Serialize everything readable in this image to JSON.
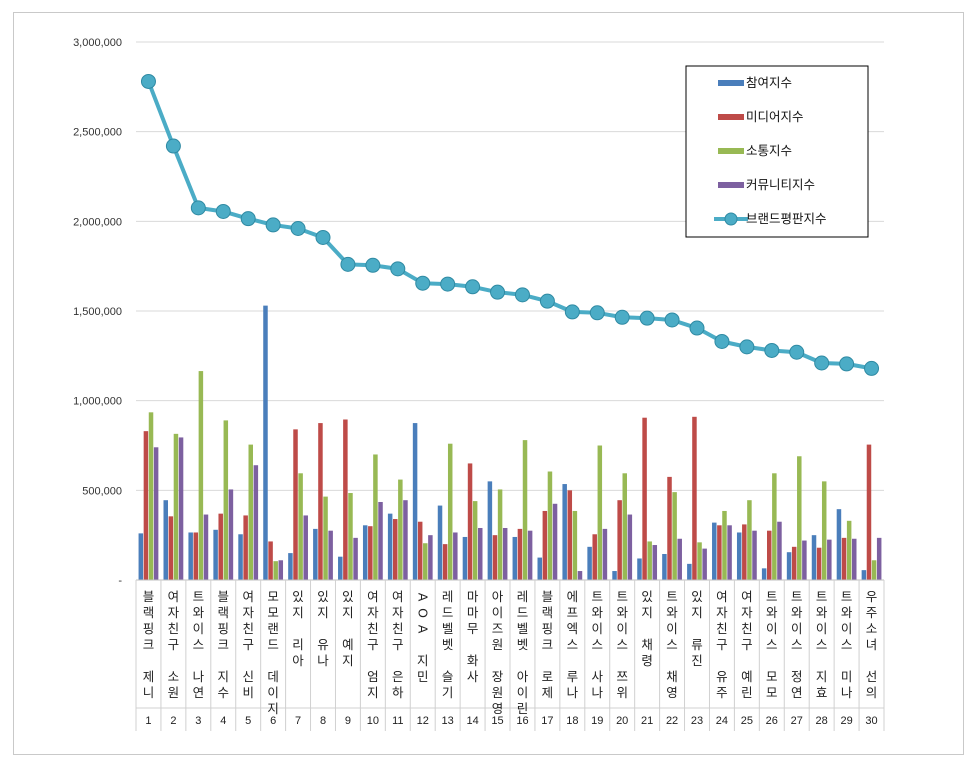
{
  "chart_data": {
    "type": "bar",
    "ylim": [
      0,
      3000000
    ],
    "y_ticks": [
      "-",
      "500,000",
      "1,000,000",
      "1,500,000",
      "2,000,000",
      "2,500,000",
      "3,000,000"
    ],
    "grid": true,
    "legend_position": "top-right",
    "categories": [
      "블랙핑크 제니",
      "여자친구 소원",
      "트와이스 나연",
      "블랙핑크 지수",
      "여자친구 신비",
      "모모랜드 데이지",
      "있지 리아",
      "있지 유나",
      "있지 예지",
      "여자친구 엄지",
      "여자친구 은하",
      "AOA 지민",
      "레드벨벳 슬기",
      "마마무 화사",
      "아이즈원 장원영",
      "레드벨벳 아이린",
      "블랙핑크 로제",
      "에프엑스 루나",
      "트와이스 사나",
      "트와이스 쯔위",
      "있지 채령",
      "트와이스 채영",
      "있지 류진",
      "여자친구 유주",
      "여자친구 예린",
      "트와이스 모모",
      "트와이스 정연",
      "트와이스 지효",
      "트와이스 미나",
      "우주소녀 선의"
    ],
    "ranks": [
      "1",
      "2",
      "3",
      "4",
      "5",
      "6",
      "7",
      "8",
      "9",
      "10",
      "11",
      "12",
      "13",
      "14",
      "15",
      "16",
      "17",
      "18",
      "19",
      "20",
      "21",
      "22",
      "23",
      "24",
      "25",
      "26",
      "27",
      "28",
      "29",
      "30"
    ],
    "series": [
      {
        "name": "참여지수",
        "color": "#4a7ebb",
        "kind": "bar",
        "values": [
          260000,
          445000,
          265000,
          280000,
          255000,
          1530000,
          150000,
          285000,
          130000,
          305000,
          370000,
          875000,
          415000,
          240000,
          550000,
          240000,
          125000,
          535000,
          185000,
          50000,
          120000,
          145000,
          90000,
          320000,
          265000,
          65000,
          155000,
          250000,
          395000,
          55000
        ]
      },
      {
        "name": "미디어지수",
        "color": "#be4b48",
        "kind": "bar",
        "values": [
          830000,
          355000,
          265000,
          370000,
          360000,
          215000,
          840000,
          875000,
          895000,
          300000,
          340000,
          325000,
          200000,
          650000,
          250000,
          285000,
          385000,
          500000,
          255000,
          445000,
          905000,
          575000,
          910000,
          305000,
          310000,
          275000,
          185000,
          180000,
          235000,
          755000
        ]
      },
      {
        "name": "소통지수",
        "color": "#98b954",
        "kind": "bar",
        "values": [
          935000,
          815000,
          1165000,
          890000,
          755000,
          105000,
          595000,
          465000,
          485000,
          700000,
          560000,
          205000,
          760000,
          440000,
          505000,
          780000,
          605000,
          385000,
          750000,
          595000,
          215000,
          490000,
          210000,
          385000,
          445000,
          595000,
          690000,
          550000,
          330000,
          110000
        ]
      },
      {
        "name": "커뮤니티지수",
        "color": "#7d60a0",
        "kind": "bar",
        "values": [
          740000,
          795000,
          365000,
          505000,
          640000,
          110000,
          360000,
          275000,
          235000,
          435000,
          445000,
          250000,
          265000,
          290000,
          290000,
          275000,
          425000,
          50000,
          285000,
          365000,
          195000,
          230000,
          175000,
          305000,
          275000,
          325000,
          220000,
          225000,
          230000,
          235000
        ]
      },
      {
        "name": "브랜드평판지수",
        "color": "#4bacc6",
        "kind": "line",
        "values": [
          2780000,
          2420000,
          2075000,
          2055000,
          2015000,
          1980000,
          1960000,
          1910000,
          1760000,
          1755000,
          1735000,
          1655000,
          1650000,
          1635000,
          1605000,
          1590000,
          1555000,
          1495000,
          1490000,
          1465000,
          1460000,
          1450000,
          1405000,
          1330000,
          1300000,
          1280000,
          1270000,
          1210000,
          1205000,
          1180000
        ]
      }
    ]
  }
}
